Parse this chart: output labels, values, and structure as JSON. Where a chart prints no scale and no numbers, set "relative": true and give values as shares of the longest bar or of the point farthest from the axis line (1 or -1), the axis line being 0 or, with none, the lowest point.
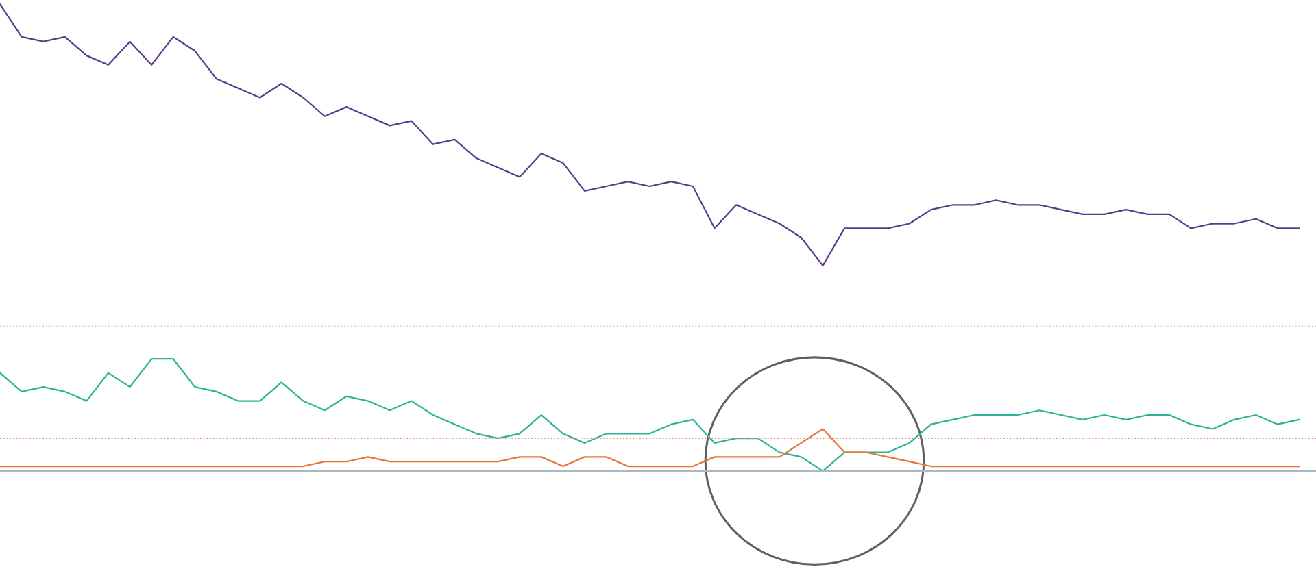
{
  "chart_data": {
    "type": "line",
    "relative": true,
    "categories": [
      null,
      null,
      null,
      null,
      null,
      null,
      null,
      null,
      null,
      null,
      null,
      null,
      null,
      null,
      null,
      null,
      null,
      null,
      null,
      null,
      null,
      null,
      null,
      null,
      null,
      null,
      null,
      null,
      null,
      null,
      null,
      null,
      null,
      null,
      null,
      null,
      null,
      null,
      null,
      null,
      null,
      null,
      null,
      null,
      null,
      null,
      null,
      null,
      null,
      null,
      null,
      null,
      null,
      null,
      null,
      null,
      null,
      null,
      null,
      null,
      null
    ],
    "series": [
      {
        "color": "#5b3a8c",
        "values": [
          1.0,
          0.93,
          0.92,
          0.93,
          0.89,
          0.87,
          0.92,
          0.87,
          0.93,
          0.9,
          0.84,
          0.82,
          0.8,
          0.83,
          0.8,
          0.76,
          0.78,
          0.76,
          0.74,
          0.75,
          0.7,
          0.71,
          0.67,
          0.65,
          0.63,
          0.68,
          0.66,
          0.6,
          0.61,
          0.62,
          0.61,
          0.62,
          0.61,
          0.52,
          0.57,
          0.55,
          0.53,
          0.5,
          0.44,
          0.52,
          0.52,
          0.52,
          0.53,
          0.56,
          0.57,
          0.57,
          0.58,
          0.57,
          0.57,
          0.56,
          0.55,
          0.55,
          0.56,
          0.55,
          0.55,
          0.52,
          0.53,
          0.53,
          0.54,
          0.52,
          0.52
        ]
      },
      {
        "color": "#2bb39a",
        "values": [
          0.21,
          0.17,
          0.18,
          0.17,
          0.15,
          0.21,
          0.18,
          0.24,
          0.24,
          0.18,
          0.17,
          0.15,
          0.15,
          0.19,
          0.15,
          0.13,
          0.16,
          0.15,
          0.13,
          0.15,
          0.12,
          0.1,
          0.08,
          0.07,
          0.08,
          0.12,
          0.08,
          0.06,
          0.08,
          0.08,
          0.08,
          0.1,
          0.11,
          0.06,
          0.07,
          0.07,
          0.04,
          0.03,
          0.0,
          0.04,
          0.04,
          0.04,
          0.06,
          0.1,
          0.11,
          0.12,
          0.12,
          0.12,
          0.13,
          0.12,
          0.11,
          0.12,
          0.11,
          0.12,
          0.12,
          0.1,
          0.09,
          0.11,
          0.12,
          0.1,
          0.11
        ]
      },
      {
        "color": "#e8743b",
        "values": [
          0.01,
          0.01,
          0.01,
          0.01,
          0.01,
          0.01,
          0.01,
          0.01,
          0.01,
          0.01,
          0.01,
          0.01,
          0.01,
          0.01,
          0.01,
          0.02,
          0.02,
          0.03,
          0.02,
          0.02,
          0.02,
          0.02,
          0.02,
          0.02,
          0.03,
          0.03,
          0.01,
          0.03,
          0.03,
          0.01,
          0.01,
          0.01,
          0.01,
          0.03,
          0.03,
          0.03,
          0.03,
          0.06,
          0.09,
          0.04,
          0.04,
          0.03,
          0.02,
          0.01,
          0.01,
          0.01,
          0.01,
          0.01,
          0.01,
          0.01,
          0.01,
          0.01,
          0.01,
          0.01,
          0.01,
          0.01,
          0.01,
          0.01,
          0.01,
          0.01,
          0.01
        ]
      }
    ],
    "ref_lines": [
      {
        "axis": "y",
        "value": 0.31,
        "color": "#b7d4e6",
        "line_style": "dotted"
      },
      {
        "axis": "y",
        "value": 0.07,
        "color": "#e8906a",
        "line_style": "dotted"
      }
    ]
  }
}
